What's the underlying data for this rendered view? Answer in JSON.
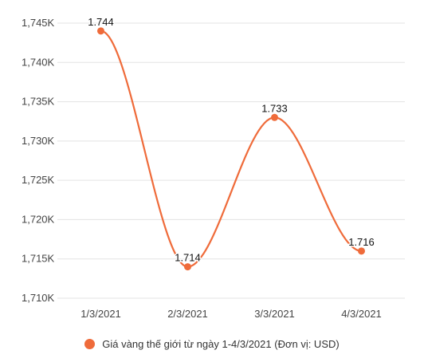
{
  "chart_data": {
    "type": "line",
    "categories": [
      "1/3/2021",
      "2/3/2021",
      "3/3/2021",
      "4/3/2021"
    ],
    "series": [
      {
        "name": "Giá vàng thế giới từ ngày 1-4/3/2021 (Đơn vị: USD)",
        "values": [
          1744,
          1714,
          1733,
          1716
        ],
        "labels": [
          "1.744",
          "1.714",
          "1.733",
          "1.716"
        ],
        "color": "#ef6b3a"
      }
    ],
    "y_ticks": [
      1710,
      1715,
      1720,
      1725,
      1730,
      1735,
      1740,
      1745
    ],
    "y_tick_labels": [
      "1,710K",
      "1,715K",
      "1,720K",
      "1,725K",
      "1,730K",
      "1,735K",
      "1,740K",
      "1,745K"
    ],
    "ylim": [
      1710,
      1745
    ],
    "grid": true,
    "legend_position": "bottom",
    "smooth": true
  }
}
